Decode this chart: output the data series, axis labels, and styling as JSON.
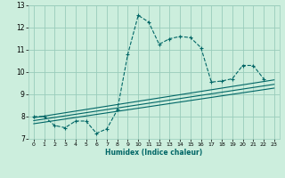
{
  "xlabel": "Humidex (Indice chaleur)",
  "bg_color": "#cceedd",
  "grid_color": "#99ccbb",
  "line_color": "#006666",
  "xlim": [
    -0.5,
    23.5
  ],
  "ylim": [
    7,
    13
  ],
  "xticks": [
    0,
    1,
    2,
    3,
    4,
    5,
    6,
    7,
    8,
    9,
    10,
    11,
    12,
    13,
    14,
    15,
    16,
    17,
    18,
    19,
    20,
    21,
    22,
    23
  ],
  "yticks": [
    7,
    8,
    9,
    10,
    11,
    12,
    13
  ],
  "main_x": [
    0,
    1,
    2,
    3,
    4,
    5,
    6,
    7,
    8,
    9,
    10,
    11,
    12,
    13,
    14,
    15,
    16,
    17,
    18,
    19,
    20,
    21,
    22
  ],
  "main_y": [
    8.0,
    8.0,
    7.6,
    7.5,
    7.8,
    7.8,
    7.25,
    7.45,
    8.3,
    10.8,
    12.55,
    12.25,
    11.25,
    11.5,
    11.6,
    11.55,
    11.1,
    9.55,
    9.6,
    9.7,
    10.3,
    10.3,
    9.7
  ],
  "line1_x": [
    0,
    23
  ],
  "line1_y": [
    7.95,
    9.65
  ],
  "line2_x": [
    0,
    23
  ],
  "line2_y": [
    7.82,
    9.45
  ],
  "line3_x": [
    0,
    23
  ],
  "line3_y": [
    7.68,
    9.28
  ]
}
